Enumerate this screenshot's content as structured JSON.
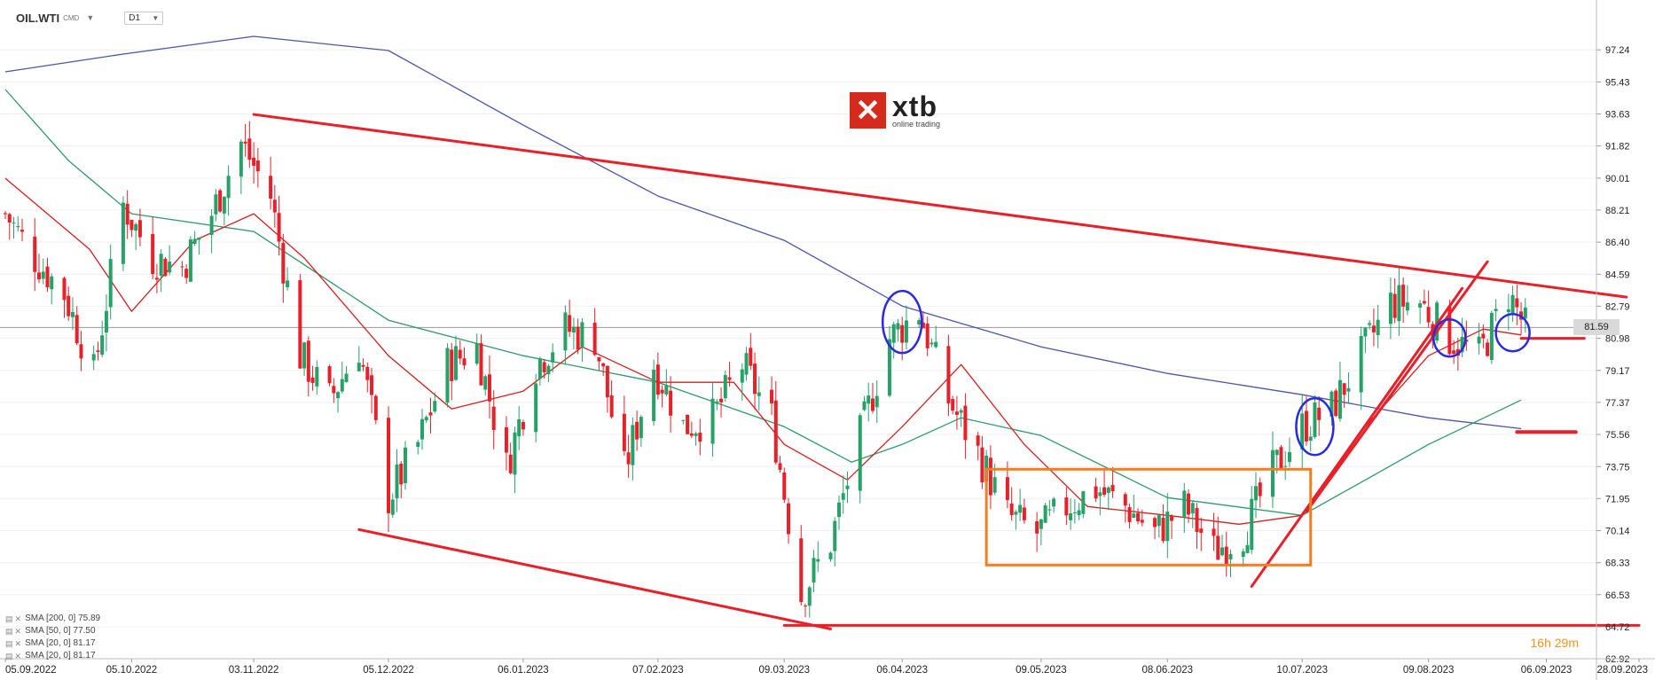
{
  "header": {
    "symbol": "OIL.WTI",
    "market": "CMD",
    "timeframe": "D1"
  },
  "logo": {
    "mark": "✕",
    "name": "xtb",
    "tagline": "online trading"
  },
  "price_axis": {
    "labels": [
      "97.24",
      "95.43",
      "93.63",
      "91.82",
      "90.01",
      "88.21",
      "86.40",
      "84.59",
      "82.79",
      "80.98",
      "79.17",
      "77.37",
      "75.56",
      "73.75",
      "71.95",
      "70.14",
      "68.33",
      "66.53",
      "64.72",
      "62.92"
    ]
  },
  "time_axis": {
    "labels": [
      "05.09.2022",
      "05.10.2022",
      "03.11.2022",
      "05.12.2022",
      "06.01.2023",
      "07.02.2023",
      "09.03.2023",
      "06.04.2023",
      "09.05.2023",
      "08.06.2023",
      "10.07.2023",
      "09.08.2023",
      "06.09.2023",
      "28.09.2023"
    ]
  },
  "current_price": "81.59",
  "legend": [
    {
      "label": "SMA [200, 0] 75.89"
    },
    {
      "label": "SMA [50, 0] 77.50"
    },
    {
      "label": "SMA [20, 0] 81.17"
    },
    {
      "label": "SMA [20, 0] 81.17"
    }
  ],
  "countdown": {
    "hours": "16",
    "h_unit": "h",
    "minutes": "29",
    "m_unit": "m"
  },
  "colors": {
    "up": "#26a269",
    "down": "#e8202a",
    "sma200": "#4a55a8",
    "sma50": "#2e9a6a",
    "sma20": "#d42020",
    "annot_red": "#e8202a",
    "annot_orange": "#f47d20",
    "annot_blue": "#2a2ae0",
    "grid": "#efefef"
  },
  "chart_data": {
    "type": "candlestick",
    "symbol": "OIL.WTI",
    "timeframe": "D1",
    "ylim": [
      62.92,
      98.5
    ],
    "x_start": "2022-09-05",
    "x_end": "2023-09-28",
    "x_tick_labels": [
      "05.09.2022",
      "05.10.2022",
      "03.11.2022",
      "05.12.2022",
      "06.01.2023",
      "07.02.2023",
      "09.03.2023",
      "06.04.2023",
      "09.05.2023",
      "08.06.2023",
      "10.07.2023",
      "09.08.2023",
      "06.09.2023",
      "28.09.2023"
    ],
    "close_path": [
      [
        "2022-09-05",
        88.0
      ],
      [
        "2022-09-12",
        85.5
      ],
      [
        "2022-09-19",
        83.5
      ],
      [
        "2022-09-26",
        79.0
      ],
      [
        "2022-10-03",
        88.5
      ],
      [
        "2022-10-10",
        85.5
      ],
      [
        "2022-10-17",
        85.0
      ],
      [
        "2022-10-24",
        88.0
      ],
      [
        "2022-10-31",
        92.0
      ],
      [
        "2022-11-07",
        89.0
      ],
      [
        "2022-11-14",
        80.0
      ],
      [
        "2022-11-21",
        77.5
      ],
      [
        "2022-11-28",
        80.5
      ],
      [
        "2022-12-05",
        72.0
      ],
      [
        "2022-12-12",
        75.0
      ],
      [
        "2022-12-19",
        79.5
      ],
      [
        "2022-12-26",
        80.5
      ],
      [
        "2023-01-02",
        73.7
      ],
      [
        "2023-01-09",
        79.5
      ],
      [
        "2023-01-16",
        81.5
      ],
      [
        "2023-01-23",
        81.0
      ],
      [
        "2023-01-30",
        73.5
      ],
      [
        "2023-02-06",
        79.5
      ],
      [
        "2023-02-13",
        76.0
      ],
      [
        "2023-02-20",
        76.5
      ],
      [
        "2023-02-27",
        79.5
      ],
      [
        "2023-03-06",
        76.5
      ],
      [
        "2023-03-13",
        66.5
      ],
      [
        "2023-03-20",
        69.5
      ],
      [
        "2023-03-27",
        75.5
      ],
      [
        "2023-04-03",
        81.0
      ],
      [
        "2023-04-10",
        82.5
      ],
      [
        "2023-04-17",
        77.5
      ],
      [
        "2023-04-24",
        74.5
      ],
      [
        "2023-05-01",
        71.0
      ],
      [
        "2023-05-08",
        70.0
      ],
      [
        "2023-05-15",
        71.5
      ],
      [
        "2023-05-22",
        72.5
      ],
      [
        "2023-05-29",
        71.5
      ],
      [
        "2023-06-05",
        70.0
      ],
      [
        "2023-06-12",
        71.5
      ],
      [
        "2023-06-19",
        69.0
      ],
      [
        "2023-06-26",
        70.0
      ],
      [
        "2023-07-03",
        73.5
      ],
      [
        "2023-07-10",
        76.0
      ],
      [
        "2023-07-17",
        77.0
      ],
      [
        "2023-07-24",
        80.0
      ],
      [
        "2023-07-31",
        83.0
      ],
      [
        "2023-08-07",
        83.0
      ],
      [
        "2023-08-14",
        81.0
      ],
      [
        "2023-08-21",
        80.0
      ],
      [
        "2023-08-28",
        83.5
      ],
      [
        "2023-09-01",
        81.59
      ]
    ],
    "sma_200": [
      [
        "2022-09-05",
        96.0
      ],
      [
        "2022-10-03",
        97.0
      ],
      [
        "2022-11-03",
        98.0
      ],
      [
        "2022-12-05",
        97.2
      ],
      [
        "2023-01-06",
        93.0
      ],
      [
        "2023-02-07",
        89.0
      ],
      [
        "2023-03-09",
        86.5
      ],
      [
        "2023-04-06",
        82.8
      ],
      [
        "2023-05-09",
        80.5
      ],
      [
        "2023-06-08",
        79.0
      ],
      [
        "2023-07-10",
        77.8
      ],
      [
        "2023-08-09",
        76.5
      ],
      [
        "2023-08-31",
        75.89
      ]
    ],
    "sma_50": [
      [
        "2022-09-05",
        95.0
      ],
      [
        "2022-09-20",
        91.0
      ],
      [
        "2022-10-05",
        88.0
      ],
      [
        "2022-11-03",
        87.0
      ],
      [
        "2022-12-05",
        82.0
      ],
      [
        "2023-01-06",
        80.0
      ],
      [
        "2023-02-07",
        78.5
      ],
      [
        "2023-03-09",
        76.0
      ],
      [
        "2023-03-25",
        74.0
      ],
      [
        "2023-04-06",
        75.0
      ],
      [
        "2023-04-20",
        76.5
      ],
      [
        "2023-05-09",
        75.5
      ],
      [
        "2023-06-08",
        72.0
      ],
      [
        "2023-07-10",
        71.0
      ],
      [
        "2023-08-09",
        75.0
      ],
      [
        "2023-08-31",
        77.5
      ]
    ],
    "sma_20": [
      [
        "2022-09-05",
        90.0
      ],
      [
        "2022-09-25",
        86.0
      ],
      [
        "2022-10-05",
        82.5
      ],
      [
        "2022-10-20",
        86.5
      ],
      [
        "2022-11-03",
        88.0
      ],
      [
        "2022-11-15",
        85.5
      ],
      [
        "2022-12-05",
        80.0
      ],
      [
        "2022-12-20",
        77.0
      ],
      [
        "2023-01-06",
        78.0
      ],
      [
        "2023-01-20",
        80.5
      ],
      [
        "2023-02-07",
        78.5
      ],
      [
        "2023-02-25",
        78.5
      ],
      [
        "2023-03-09",
        75.0
      ],
      [
        "2023-03-24",
        73.0
      ],
      [
        "2023-04-06",
        76.0
      ],
      [
        "2023-04-20",
        79.5
      ],
      [
        "2023-05-05",
        75.0
      ],
      [
        "2023-05-20",
        71.5
      ],
      [
        "2023-06-08",
        71.0
      ],
      [
        "2023-06-25",
        70.5
      ],
      [
        "2023-07-10",
        71.0
      ],
      [
        "2023-07-25",
        76.0
      ],
      [
        "2023-08-09",
        80.0
      ],
      [
        "2023-08-22",
        81.5
      ],
      [
        "2023-08-31",
        81.17
      ]
    ],
    "annotations": {
      "descending_top": [
        [
          "2022-11-03",
          93.6
        ],
        [
          "2023-09-25",
          83.3
        ]
      ],
      "descending_bottom": [
        [
          "2022-11-28",
          70.2
        ],
        [
          "2023-03-20",
          64.6
        ]
      ],
      "support_line": [
        [
          "2023-03-09",
          64.8
        ],
        [
          "2023-09-28",
          64.8
        ]
      ],
      "range_box": {
        "x0": "2023-04-26",
        "x1": "2023-07-12",
        "y0": 68.2,
        "y1": 73.6
      },
      "channel_lower": [
        [
          "2023-06-28",
          67.0
        ],
        [
          "2023-08-17",
          83.8
        ]
      ],
      "channel_upper": [
        [
          "2023-07-11",
          71.2
        ],
        [
          "2023-08-23",
          85.3
        ]
      ],
      "resistance_stub": [
        [
          "2023-08-31",
          80.98
        ],
        [
          "2023-09-15",
          80.98
        ]
      ],
      "support_stub": [
        [
          "2023-08-30",
          75.7
        ],
        [
          "2023-09-13",
          75.7
        ]
      ],
      "circles": [
        {
          "center": [
            "2023-04-06",
            81.9
          ]
        },
        {
          "center": [
            "2023-07-13",
            76.0
          ]
        },
        {
          "center": [
            "2023-08-14",
            81.0
          ]
        },
        {
          "center": [
            "2023-08-29",
            81.3
          ]
        }
      ]
    }
  }
}
